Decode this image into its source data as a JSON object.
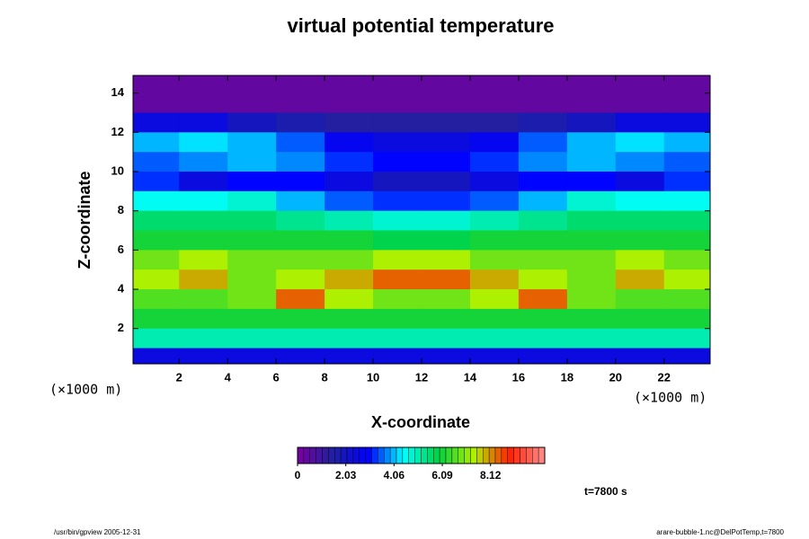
{
  "chart_data": {
    "type": "heatmap",
    "title": "virtual potential temperature",
    "xlabel": "X-coordinate",
    "ylabel": "Z-coordinate",
    "xunit": "(×1000 m)",
    "yunit": "(×1000 m)",
    "x": [
      1,
      3,
      5,
      7,
      9,
      11,
      13,
      15,
      17,
      19,
      21,
      23
    ],
    "y": [
      14.5,
      13.5,
      12.5,
      11.5,
      10.5,
      9.5,
      8.5,
      7.5,
      6.5,
      5.5,
      4.5,
      3.5,
      2.5,
      1.5,
      0.5
    ],
    "z": [
      [
        0.3,
        0.3,
        0.3,
        0.3,
        0.3,
        0.3,
        0.3,
        0.3,
        0.3,
        0.3,
        0.3,
        0.3
      ],
      [
        0.3,
        0.3,
        0.3,
        0.3,
        0.3,
        0.3,
        0.3,
        0.3,
        0.3,
        0.3,
        0.3,
        0.3
      ],
      [
        2.5,
        2.5,
        2,
        1.8,
        1.5,
        1.5,
        1.5,
        1.5,
        1.8,
        2,
        2.5,
        2.5
      ],
      [
        4,
        4.2,
        4,
        3.5,
        2.8,
        2.5,
        2.5,
        2.8,
        3.5,
        4,
        4.2,
        4
      ],
      [
        3.5,
        3.8,
        4,
        3.8,
        3.2,
        3,
        3,
        3.2,
        3.8,
        4,
        3.8,
        3.5
      ],
      [
        3.2,
        2.5,
        3,
        3,
        2.5,
        2,
        2,
        2.5,
        3,
        3,
        2.5,
        3.2
      ],
      [
        4.5,
        4.5,
        4.8,
        4,
        3.5,
        3.2,
        3.2,
        3.5,
        4,
        4.8,
        4.5,
        4.5
      ],
      [
        5.5,
        5.5,
        5.5,
        5.2,
        5,
        4.8,
        4.8,
        5,
        5.2,
        5.5,
        5.5,
        5.5
      ],
      [
        6,
        6,
        6.2,
        6,
        6,
        5.8,
        5.8,
        6,
        6,
        6.2,
        6,
        6
      ],
      [
        7,
        7.5,
        7,
        6.8,
        7,
        7.5,
        7.5,
        7,
        6.8,
        7,
        7.5,
        7
      ],
      [
        7.5,
        8,
        7,
        7.5,
        8,
        8.5,
        8.5,
        8,
        7.5,
        7,
        8,
        7.5
      ],
      [
        6.5,
        6.5,
        6.8,
        8.5,
        7.5,
        7,
        7,
        7.5,
        8.5,
        6.8,
        6.5,
        6.5
      ],
      [
        6,
        6,
        6,
        6,
        6,
        6,
        6,
        6,
        6,
        6,
        6,
        6
      ],
      [
        5,
        5,
        5,
        5,
        5,
        5,
        5,
        5,
        5,
        5,
        5,
        5
      ],
      [
        2.5,
        2.5,
        2.5,
        2.5,
        2.5,
        2.5,
        2.5,
        2.5,
        2.5,
        2.5,
        2.5,
        2.5
      ]
    ],
    "xlim": [
      0.1,
      23.9
    ],
    "ylim": [
      0.2,
      14.9
    ],
    "xticks": [
      2,
      4,
      6,
      8,
      10,
      12,
      14,
      16,
      18,
      20,
      22
    ],
    "yticks": [
      2,
      4,
      6,
      8,
      10,
      12,
      14
    ],
    "colorbar": {
      "lim": [
        0,
        10.4
      ],
      "ticks": [
        0,
        2.03,
        4.06,
        6.09,
        8.12
      ],
      "levels": 40,
      "colors": [
        "#7a00a0",
        "#2020a0",
        "#0000ff",
        "#00ffff",
        "#00d040",
        "#b0f000",
        "#ff2000",
        "#ff9090"
      ]
    },
    "annotation": "t=7800 s",
    "footer_left": "/usr/bin/gpview 2005-12-31",
    "footer_right": "arare-bubble-1.nc@DelPotTemp,t=7800"
  }
}
